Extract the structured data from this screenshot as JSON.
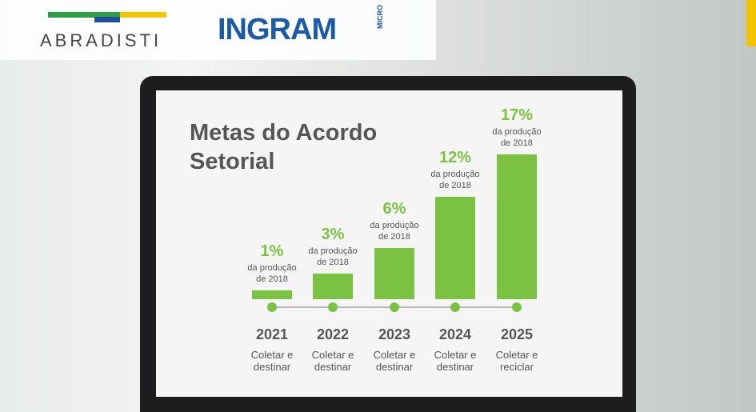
{
  "logos": {
    "abradisti": "ABRADISTI",
    "ingram": "INGRAM",
    "micro": "MICRO"
  },
  "chart_data": {
    "type": "bar",
    "title": "Metas do Acordo Setorial",
    "categories": [
      "2021",
      "2022",
      "2023",
      "2024",
      "2025"
    ],
    "values": [
      1,
      3,
      6,
      12,
      17
    ],
    "value_labels": [
      "1%",
      "3%",
      "6%",
      "12%",
      "17%"
    ],
    "annotations": [
      "da produção de 2018",
      "da produção de 2018",
      "da produção de 2018",
      "da produção de 2018",
      "da produção de 2018"
    ],
    "stage_labels": [
      "Coletar e destinar",
      "Coletar e destinar",
      "Coletar e destinar",
      "Coletar e destinar",
      "Coletar e reciclar"
    ],
    "color": "#7cc242"
  }
}
